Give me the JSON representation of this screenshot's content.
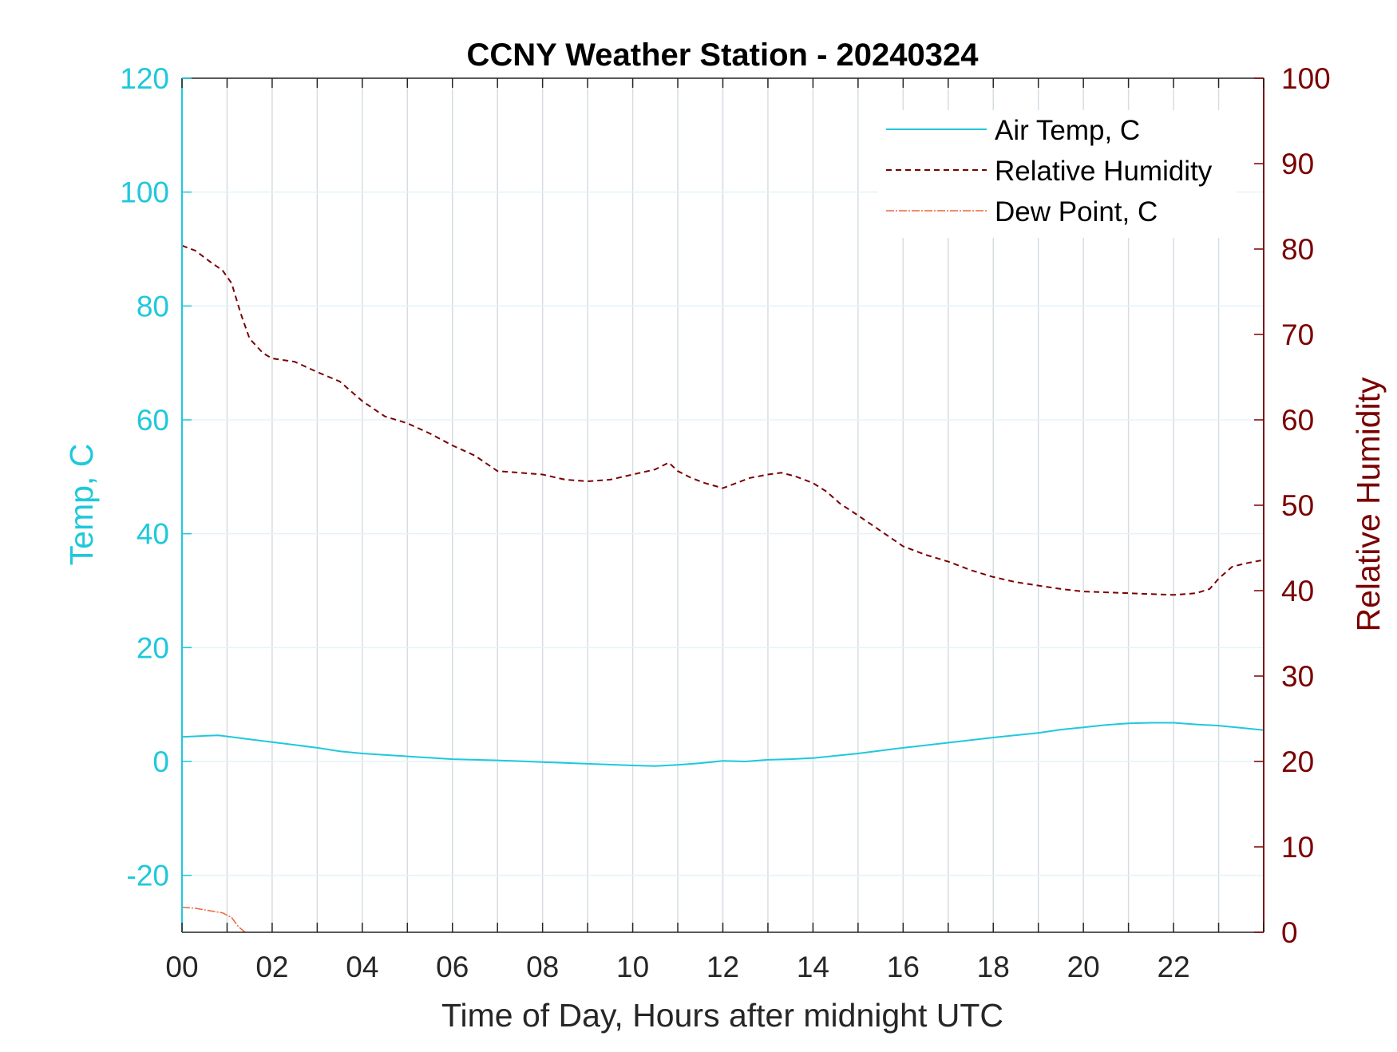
{
  "chart_data": {
    "type": "line",
    "title": "CCNY Weather Station - 20240324",
    "xlabel": "Time of Day, Hours after midnight UTC",
    "ylabel_left": "Temp, C",
    "ylabel_right": "Relative Humidity",
    "xlim": [
      0,
      24
    ],
    "ylim_left": [
      -30,
      120
    ],
    "ylim_right": [
      0,
      100
    ],
    "x_ticks": [
      0,
      2,
      4,
      6,
      8,
      10,
      12,
      14,
      16,
      18,
      20,
      22
    ],
    "x_tick_labels": [
      "00",
      "02",
      "04",
      "06",
      "08",
      "10",
      "12",
      "14",
      "16",
      "18",
      "20",
      "22"
    ],
    "y_ticks_left": [
      -20,
      0,
      20,
      40,
      60,
      80,
      100,
      120
    ],
    "y_ticks_right": [
      0,
      10,
      20,
      30,
      40,
      50,
      60,
      70,
      80,
      90,
      100
    ],
    "grid": true,
    "legend_position": "top-right",
    "colors": {
      "temp": "#1fc8dc",
      "humidity": "#7a0000",
      "dewpoint": "#e8663c",
      "grid": "#d6dde2",
      "frame": "#262626"
    },
    "series": [
      {
        "name": "Air Temp, C",
        "axis": "left",
        "style": "solid",
        "x": [
          0,
          0.5,
          0.8,
          1,
          1.5,
          2,
          2.5,
          3,
          3.5,
          4,
          5,
          6,
          7,
          8,
          9,
          10,
          10.5,
          11,
          11.5,
          12,
          12.5,
          13,
          13.5,
          14,
          15,
          16,
          17,
          18,
          19,
          19.5,
          20,
          20.5,
          21,
          21.5,
          22,
          22.5,
          23,
          23.5,
          24
        ],
        "y": [
          4.3,
          4.5,
          4.6,
          4.4,
          3.9,
          3.4,
          2.9,
          2.4,
          1.8,
          1.4,
          0.9,
          0.4,
          0.2,
          -0.1,
          -0.4,
          -0.7,
          -0.8,
          -0.6,
          -0.3,
          0.1,
          0.0,
          0.3,
          0.4,
          0.6,
          1.4,
          2.4,
          3.3,
          4.2,
          5.0,
          5.6,
          6.0,
          6.4,
          6.7,
          6.8,
          6.8,
          6.5,
          6.3,
          5.9,
          5.5
        ]
      },
      {
        "name": "Relative Humidity",
        "axis": "right",
        "style": "dashed",
        "x": [
          0,
          0.3,
          0.6,
          0.9,
          1.1,
          1.3,
          1.5,
          1.8,
          2.0,
          2.5,
          3.0,
          3.5,
          4.0,
          4.5,
          5.0,
          5.5,
          6.0,
          6.5,
          7.0,
          7.5,
          8.0,
          8.5,
          9.0,
          9.5,
          10.0,
          10.5,
          10.8,
          11.0,
          11.3,
          11.6,
          12.0,
          12.3,
          12.6,
          13.0,
          13.3,
          13.6,
          14.0,
          14.3,
          14.6,
          15.0,
          15.5,
          16.0,
          16.5,
          17.0,
          17.5,
          18.0,
          18.5,
          19.0,
          19.5,
          20.0,
          20.5,
          21.0,
          21.5,
          22.0,
          22.5,
          22.8,
          23.0,
          23.3,
          23.6,
          24.0
        ],
        "y": [
          80.4,
          79.8,
          78.6,
          77.5,
          76.0,
          72.5,
          69.5,
          67.8,
          67.2,
          66.8,
          65.6,
          64.5,
          62.2,
          60.4,
          59.6,
          58.4,
          57.0,
          55.8,
          54.0,
          53.8,
          53.6,
          53.0,
          52.8,
          53.0,
          53.6,
          54.2,
          55.0,
          54.0,
          53.2,
          52.6,
          52.0,
          52.6,
          53.2,
          53.6,
          53.8,
          53.4,
          52.6,
          51.6,
          50.2,
          48.8,
          47.0,
          45.2,
          44.2,
          43.4,
          42.4,
          41.6,
          41.0,
          40.6,
          40.2,
          39.9,
          39.8,
          39.7,
          39.6,
          39.5,
          39.7,
          40.2,
          41.4,
          42.8,
          43.2,
          43.6
        ]
      },
      {
        "name": "Dew Point, C",
        "axis": "left",
        "style": "dash-dot",
        "x": [
          0,
          0.3,
          0.6,
          0.9,
          1.1,
          1.25,
          1.4
        ],
        "y": [
          -25.6,
          -25.8,
          -26.2,
          -26.6,
          -27.4,
          -29.0,
          -30.0
        ]
      }
    ]
  }
}
